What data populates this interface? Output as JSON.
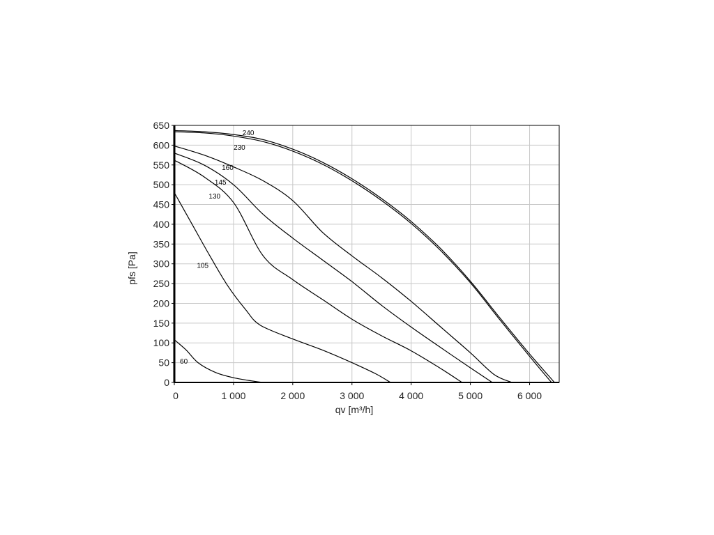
{
  "chart_data": {
    "type": "line",
    "xlabel": "qv [m³/h]",
    "ylabel": "pfs [Pa]",
    "xlim": [
      0,
      6500
    ],
    "ylim": [
      0,
      650
    ],
    "grid": true,
    "x_ticks": [
      0,
      1000,
      2000,
      3000,
      4000,
      5000,
      6000
    ],
    "x_tick_labels": [
      "0",
      "1 000",
      "2 000",
      "3 000",
      "4 000",
      "5 000",
      "6 000"
    ],
    "y_ticks": [
      0,
      50,
      100,
      150,
      200,
      250,
      300,
      350,
      400,
      450,
      500,
      550,
      600,
      650
    ],
    "y_tick_labels": [
      "0",
      "50",
      "100",
      "150",
      "200",
      "250",
      "300",
      "350",
      "400",
      "450",
      "500",
      "550",
      "600",
      "650"
    ],
    "series": [
      {
        "name": "240",
        "label_at": [
          1250,
          625
        ],
        "points": [
          [
            0,
            637
          ],
          [
            500,
            634
          ],
          [
            1000,
            627
          ],
          [
            1500,
            614
          ],
          [
            2000,
            590
          ],
          [
            2500,
            557
          ],
          [
            3000,
            515
          ],
          [
            3500,
            465
          ],
          [
            4000,
            407
          ],
          [
            4500,
            338
          ],
          [
            5000,
            256
          ],
          [
            5500,
            163
          ],
          [
            6000,
            72
          ],
          [
            6420,
            0
          ]
        ]
      },
      {
        "name": "230",
        "label_at": [
          1100,
          588
        ],
        "points": [
          [
            0,
            634
          ],
          [
            500,
            631
          ],
          [
            1000,
            623
          ],
          [
            1500,
            609
          ],
          [
            2000,
            585
          ],
          [
            2500,
            552
          ],
          [
            3000,
            510
          ],
          [
            3500,
            460
          ],
          [
            4000,
            402
          ],
          [
            4500,
            333
          ],
          [
            5000,
            252
          ],
          [
            5500,
            158
          ],
          [
            6000,
            66
          ],
          [
            6370,
            0
          ]
        ]
      },
      {
        "name": "160",
        "label_at": [
          900,
          537
        ],
        "points": [
          [
            0,
            598
          ],
          [
            500,
            575
          ],
          [
            1000,
            545
          ],
          [
            1500,
            510
          ],
          [
            2000,
            460
          ],
          [
            2500,
            380
          ],
          [
            3000,
            320
          ],
          [
            3500,
            265
          ],
          [
            4000,
            205
          ],
          [
            4500,
            140
          ],
          [
            5000,
            75
          ],
          [
            5400,
            20
          ],
          [
            5700,
            0
          ]
        ]
      },
      {
        "name": "145",
        "label_at": [
          780,
          500
        ],
        "points": [
          [
            0,
            580
          ],
          [
            500,
            550
          ],
          [
            1000,
            500
          ],
          [
            1500,
            425
          ],
          [
            2000,
            365
          ],
          [
            2500,
            310
          ],
          [
            3000,
            255
          ],
          [
            3500,
            195
          ],
          [
            4000,
            140
          ],
          [
            4500,
            88
          ],
          [
            5000,
            37
          ],
          [
            5370,
            0
          ]
        ]
      },
      {
        "name": "130",
        "label_at": [
          680,
          465
        ],
        "points": [
          [
            0,
            562
          ],
          [
            500,
            520
          ],
          [
            1000,
            455
          ],
          [
            1500,
            320
          ],
          [
            2000,
            260
          ],
          [
            2500,
            210
          ],
          [
            3000,
            160
          ],
          [
            3500,
            118
          ],
          [
            4000,
            80
          ],
          [
            4500,
            35
          ],
          [
            4860,
            0
          ]
        ]
      },
      {
        "name": "105",
        "label_at": [
          480,
          290
        ],
        "points": [
          [
            0,
            480
          ],
          [
            300,
            400
          ],
          [
            600,
            320
          ],
          [
            900,
            245
          ],
          [
            1200,
            185
          ],
          [
            1450,
            145
          ],
          [
            2000,
            110
          ],
          [
            2500,
            82
          ],
          [
            3000,
            50
          ],
          [
            3400,
            22
          ],
          [
            3650,
            0
          ]
        ]
      },
      {
        "name": "60",
        "label_at": [
          160,
          48
        ],
        "points": [
          [
            0,
            108
          ],
          [
            200,
            82
          ],
          [
            400,
            50
          ],
          [
            700,
            25
          ],
          [
            1000,
            12
          ],
          [
            1300,
            4
          ],
          [
            1500,
            0
          ]
        ]
      }
    ]
  }
}
